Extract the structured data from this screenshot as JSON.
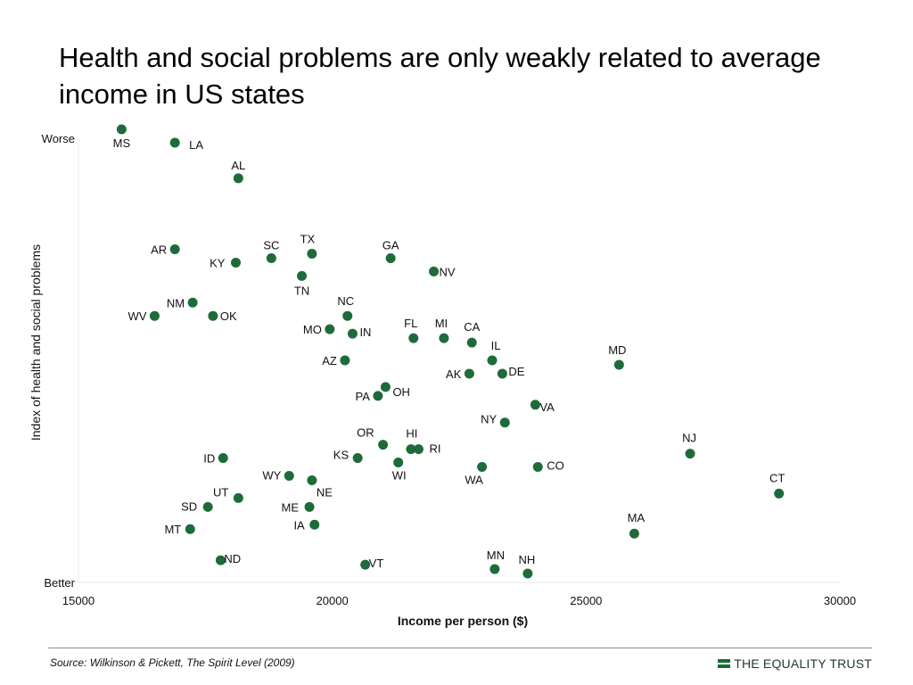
{
  "title": "Health and social problems are only weakly related to average income in US states",
  "source": "Source: Wilkinson & Pickett, The Spirit Level (2009)",
  "brand": {
    "name": "THE EQUALITY TRUST",
    "color": "#1b6b3a"
  },
  "chart_data": {
    "type": "scatter",
    "xlabel": "Income per person ($)",
    "ylabel": "Index of health and social problems",
    "xlim": [
      15000,
      30000
    ],
    "xticks": [
      15000,
      20000,
      25000,
      30000
    ],
    "ylim": [
      0,
      100
    ],
    "yticks": [
      {
        "value": 100,
        "label": "Worse"
      },
      {
        "value": 0,
        "label": "Better"
      }
    ],
    "grid": false,
    "point_color": "#1e6b3a",
    "points": [
      {
        "label": "MS",
        "x": 15850,
        "y": 102
      },
      {
        "label": "LA",
        "x": 16900,
        "y": 99
      },
      {
        "label": "AL",
        "x": 18150,
        "y": 91
      },
      {
        "label": "AR",
        "x": 16900,
        "y": 75
      },
      {
        "label": "KY",
        "x": 18100,
        "y": 72
      },
      {
        "label": "SC",
        "x": 18800,
        "y": 73
      },
      {
        "label": "TX",
        "x": 19600,
        "y": 74
      },
      {
        "label": "TN",
        "x": 19400,
        "y": 69
      },
      {
        "label": "GA",
        "x": 21150,
        "y": 73
      },
      {
        "label": "NV",
        "x": 22000,
        "y": 70
      },
      {
        "label": "NM",
        "x": 17250,
        "y": 63
      },
      {
        "label": "WV",
        "x": 16500,
        "y": 60
      },
      {
        "label": "OK",
        "x": 17650,
        "y": 60
      },
      {
        "label": "NC",
        "x": 20300,
        "y": 60
      },
      {
        "label": "MO",
        "x": 19950,
        "y": 57
      },
      {
        "label": "IN",
        "x": 20400,
        "y": 56
      },
      {
        "label": "FL",
        "x": 21600,
        "y": 55
      },
      {
        "label": "MI",
        "x": 22200,
        "y": 55
      },
      {
        "label": "CA",
        "x": 22750,
        "y": 54
      },
      {
        "label": "AZ",
        "x": 20250,
        "y": 50
      },
      {
        "label": "IL",
        "x": 23150,
        "y": 50
      },
      {
        "label": "AK",
        "x": 22700,
        "y": 47
      },
      {
        "label": "DE",
        "x": 23350,
        "y": 47
      },
      {
        "label": "MD",
        "x": 25650,
        "y": 49
      },
      {
        "label": "OH",
        "x": 21050,
        "y": 44
      },
      {
        "label": "PA",
        "x": 20900,
        "y": 42
      },
      {
        "label": "VA",
        "x": 24000,
        "y": 40
      },
      {
        "label": "NY",
        "x": 23400,
        "y": 36
      },
      {
        "label": "NJ",
        "x": 27050,
        "y": 29
      },
      {
        "label": "HI",
        "x": 21550,
        "y": 30
      },
      {
        "label": "RI",
        "x": 21700,
        "y": 30
      },
      {
        "label": "OR",
        "x": 21000,
        "y": 31
      },
      {
        "label": "KS",
        "x": 20500,
        "y": 28
      },
      {
        "label": "WI",
        "x": 21300,
        "y": 27
      },
      {
        "label": "WA",
        "x": 22950,
        "y": 26
      },
      {
        "label": "CO",
        "x": 24050,
        "y": 26
      },
      {
        "label": "ID",
        "x": 17850,
        "y": 28
      },
      {
        "label": "WY",
        "x": 19150,
        "y": 24
      },
      {
        "label": "NE",
        "x": 19600,
        "y": 23
      },
      {
        "label": "CT",
        "x": 28800,
        "y": 20
      },
      {
        "label": "UT",
        "x": 18150,
        "y": 19
      },
      {
        "label": "SD",
        "x": 17550,
        "y": 17
      },
      {
        "label": "ME",
        "x": 19550,
        "y": 17
      },
      {
        "label": "IA",
        "x": 19650,
        "y": 13
      },
      {
        "label": "MT",
        "x": 17200,
        "y": 12
      },
      {
        "label": "MA",
        "x": 25950,
        "y": 11
      },
      {
        "label": "ND",
        "x": 17800,
        "y": 5
      },
      {
        "label": "VT",
        "x": 20650,
        "y": 4
      },
      {
        "label": "MN",
        "x": 23200,
        "y": 3
      },
      {
        "label": "NH",
        "x": 23850,
        "y": 2
      }
    ]
  }
}
